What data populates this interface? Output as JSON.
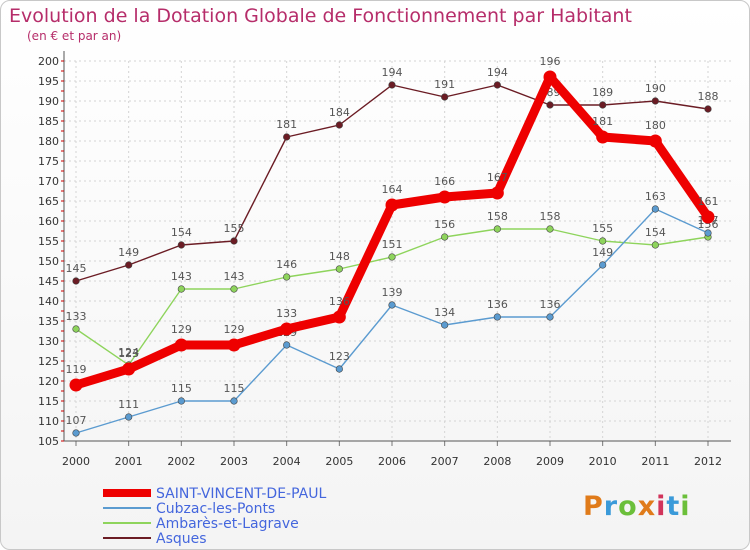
{
  "title": "Evolution de la Dotation Globale de Fonctionnement par Habitant",
  "subtitle": "(en € et par an)",
  "logo": {
    "text": "Proxiti",
    "colors": [
      "#e07b1a",
      "#3a9ad9",
      "#6bbf3a",
      "#e07b1a",
      "#d1345b",
      "#3a9ad9",
      "#6bbf3a"
    ]
  },
  "chart_data": {
    "type": "line",
    "x": [
      "2000",
      "2001",
      "2002",
      "2003",
      "2004",
      "2005",
      "2006",
      "2007",
      "2008",
      "2009",
      "2010",
      "2011",
      "2012"
    ],
    "ylim": [
      105,
      200
    ],
    "yticks": [
      105,
      110,
      115,
      120,
      125,
      130,
      135,
      140,
      145,
      150,
      155,
      160,
      165,
      170,
      175,
      180,
      185,
      190,
      195,
      200
    ],
    "grid": true,
    "legend_position": "bottom-left",
    "series": [
      {
        "name": "Asques",
        "color": "#6b1c24",
        "values": [
          145,
          149,
          154,
          155,
          181,
          184,
          194,
          191,
          194,
          189,
          189,
          190,
          188
        ],
        "labels": [
          "145",
          "149",
          "154",
          "155",
          "181",
          "184",
          "194",
          "191",
          "194",
          "189",
          "189",
          "190",
          "188"
        ]
      },
      {
        "name": "Ambarès-et-Lagrave",
        "color": "#8ed45c",
        "values": [
          133,
          124,
          143,
          143,
          146,
          148,
          151,
          156,
          158,
          158,
          155,
          154,
          156
        ],
        "labels": [
          "133",
          "124",
          "143",
          "143",
          "146",
          "148",
          "151",
          "156",
          "158",
          "158",
          "155",
          "154",
          "156"
        ]
      },
      {
        "name": "Cubzac-les-Ponts",
        "color": "#5b9bd0",
        "values": [
          107,
          111,
          115,
          115,
          129,
          123,
          139,
          134,
          136,
          136,
          149,
          163,
          157
        ],
        "labels": [
          "107",
          "111",
          "115",
          "115",
          "129",
          "123",
          "139",
          "134",
          "136",
          "136",
          "149",
          "163",
          "157"
        ]
      },
      {
        "name": "SAINT-VINCENT-DE-PAUL",
        "color": "#ee0000",
        "bold": true,
        "values": [
          119,
          123,
          129,
          129,
          133,
          136,
          164,
          166,
          167,
          196,
          181,
          180,
          161
        ],
        "labels": [
          "119",
          "123",
          "129",
          "129",
          "133",
          "136",
          "164",
          "166",
          "167",
          "196",
          "181",
          "180",
          "161"
        ]
      }
    ],
    "legend_order": [
      "SAINT-VINCENT-DE-PAUL",
      "Cubzac-les-Ponts",
      "Ambarès-et-Lagrave",
      "Asques"
    ]
  }
}
